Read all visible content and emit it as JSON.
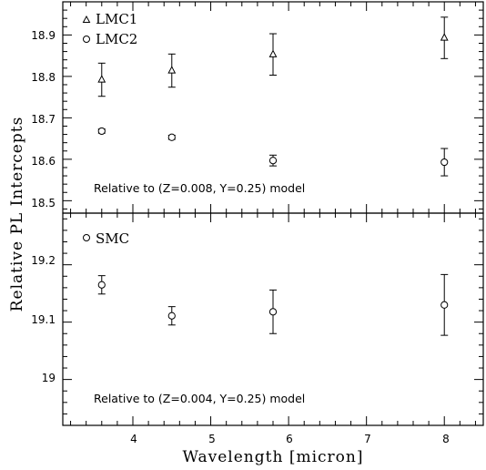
{
  "chart_data": [
    {
      "type": "scatter",
      "panel": "top",
      "xlim": [
        3.1,
        8.5
      ],
      "ylim": [
        18.47,
        18.98
      ],
      "x_ticks": [
        4,
        5,
        6,
        7,
        8
      ],
      "y_ticks": [
        18.5,
        18.6,
        18.7,
        18.8,
        18.9
      ],
      "y_tick_labels": [
        "18.5",
        "18.6",
        "18.7",
        "18.8",
        "18.9"
      ],
      "annotation": "Relative to (Z=0.008, Y=0.25) model",
      "legend_position": "top-left",
      "series": [
        {
          "name": "LMC1",
          "marker": "triangle",
          "x": [
            3.6,
            4.5,
            5.8,
            8.0
          ],
          "y": [
            18.792,
            18.814,
            18.853,
            18.893
          ],
          "err": [
            0.04,
            0.04,
            0.05,
            0.05
          ]
        },
        {
          "name": "LMC2",
          "marker": "circle",
          "x": [
            3.6,
            4.5,
            5.8,
            8.0
          ],
          "y": [
            18.668,
            18.653,
            18.597,
            18.593
          ],
          "err": [
            0.005,
            0.005,
            0.013,
            0.033
          ]
        }
      ]
    },
    {
      "type": "scatter",
      "panel": "bottom",
      "xlim": [
        3.1,
        8.5
      ],
      "ylim": [
        18.92,
        19.29
      ],
      "x_ticks": [
        4,
        5,
        6,
        7,
        8
      ],
      "y_ticks": [
        19.0,
        19.1,
        19.2
      ],
      "y_tick_labels": [
        "19",
        "19.1",
        "19.2"
      ],
      "annotation": "Relative to (Z=0.004, Y=0.25) model",
      "legend_position": "top-left",
      "series": [
        {
          "name": "SMC",
          "marker": "circle",
          "x": [
            3.6,
            4.5,
            5.8,
            8.0
          ],
          "y": [
            19.165,
            19.111,
            19.118,
            19.13
          ],
          "err": [
            0.016,
            0.016,
            0.038,
            0.053
          ]
        }
      ]
    }
  ],
  "axes": {
    "xlabel": "Wavelength [micron]",
    "ylabel": "Relative PL Intercepts",
    "x_tick_labels": [
      "4",
      "5",
      "6",
      "7",
      "8"
    ]
  }
}
